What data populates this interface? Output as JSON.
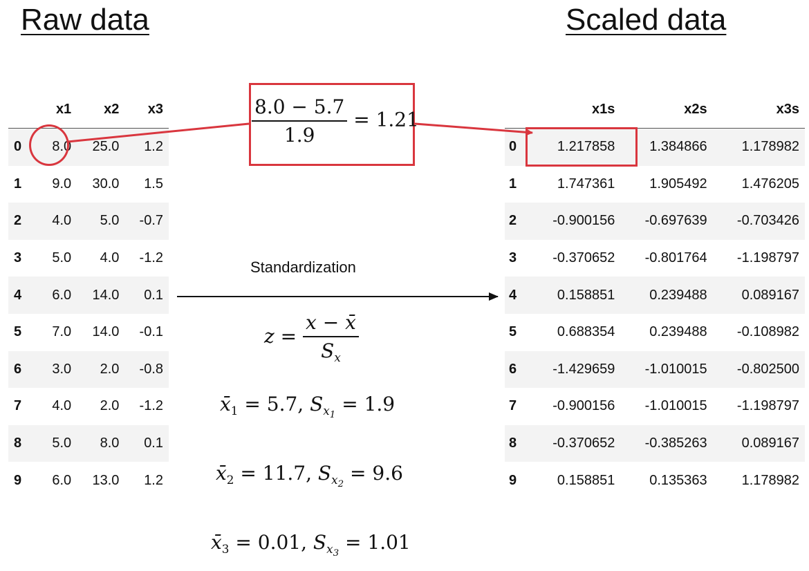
{
  "raw_title": "Raw data",
  "scaled_title": "Scaled data",
  "raw_table": {
    "columns": [
      "",
      "x1",
      "x2",
      "x3"
    ],
    "rows": [
      [
        "0",
        "8.0",
        "25.0",
        "1.2"
      ],
      [
        "1",
        "9.0",
        "30.0",
        "1.5"
      ],
      [
        "2",
        "4.0",
        "5.0",
        "-0.7"
      ],
      [
        "3",
        "5.0",
        "4.0",
        "-1.2"
      ],
      [
        "4",
        "6.0",
        "14.0",
        "0.1"
      ],
      [
        "5",
        "7.0",
        "14.0",
        "-0.1"
      ],
      [
        "6",
        "3.0",
        "2.0",
        "-0.8"
      ],
      [
        "7",
        "4.0",
        "2.0",
        "-1.2"
      ],
      [
        "8",
        "5.0",
        "8.0",
        "0.1"
      ],
      [
        "9",
        "6.0",
        "13.0",
        "1.2"
      ]
    ]
  },
  "scaled_table": {
    "columns": [
      "",
      "x1s",
      "x2s",
      "x3s"
    ],
    "rows": [
      [
        "0",
        "1.217858",
        "1.384866",
        "1.178982"
      ],
      [
        "1",
        "1.747361",
        "1.905492",
        "1.476205"
      ],
      [
        "2",
        "-0.900156",
        "-0.697639",
        "-0.703426"
      ],
      [
        "3",
        "-0.370652",
        "-0.801764",
        "-1.198797"
      ],
      [
        "4",
        "0.158851",
        "0.239488",
        "0.089167"
      ],
      [
        "5",
        "0.688354",
        "0.239488",
        "-0.108982"
      ],
      [
        "6",
        "-1.429659",
        "-1.010015",
        "-0.802500"
      ],
      [
        "7",
        "-0.900156",
        "-1.010015",
        "-1.198797"
      ],
      [
        "8",
        "-0.370652",
        "-0.385263",
        "0.089167"
      ],
      [
        "9",
        "0.158851",
        "0.135363",
        "1.178982"
      ]
    ]
  },
  "example_formula": {
    "numerator": "8.0 − 5.7",
    "denominator": "1.9",
    "result": "= 1.21"
  },
  "standardization_label": "Standardization",
  "z_formula": {
    "lhs": "z =",
    "numerator": "x − x̄",
    "denominator_var": "S",
    "denominator_sub": "x"
  },
  "stats": [
    {
      "mean_sym": "x̄",
      "idx": "1",
      "mean_val": "= 5.7,",
      "sd_sym": "S",
      "sd_sub": "x",
      "sd_sub_idx": "1",
      "sd_val": "= 1.9"
    },
    {
      "mean_sym": "x̄",
      "idx": "2",
      "mean_val": "= 11.7,",
      "sd_sym": "S",
      "sd_sub": "x",
      "sd_sub_idx": "2",
      "sd_val": "= 9.6"
    },
    {
      "mean_sym": "x̄",
      "idx": "3",
      "mean_val": "= 0.01,",
      "sd_sym": "S",
      "sd_sub": "x",
      "sd_sub_idx": "3",
      "sd_val": "= 1.01"
    }
  ],
  "colors": {
    "highlight": "#d9363e",
    "arrow": "#111111",
    "stripe": "#f3f3f3"
  }
}
